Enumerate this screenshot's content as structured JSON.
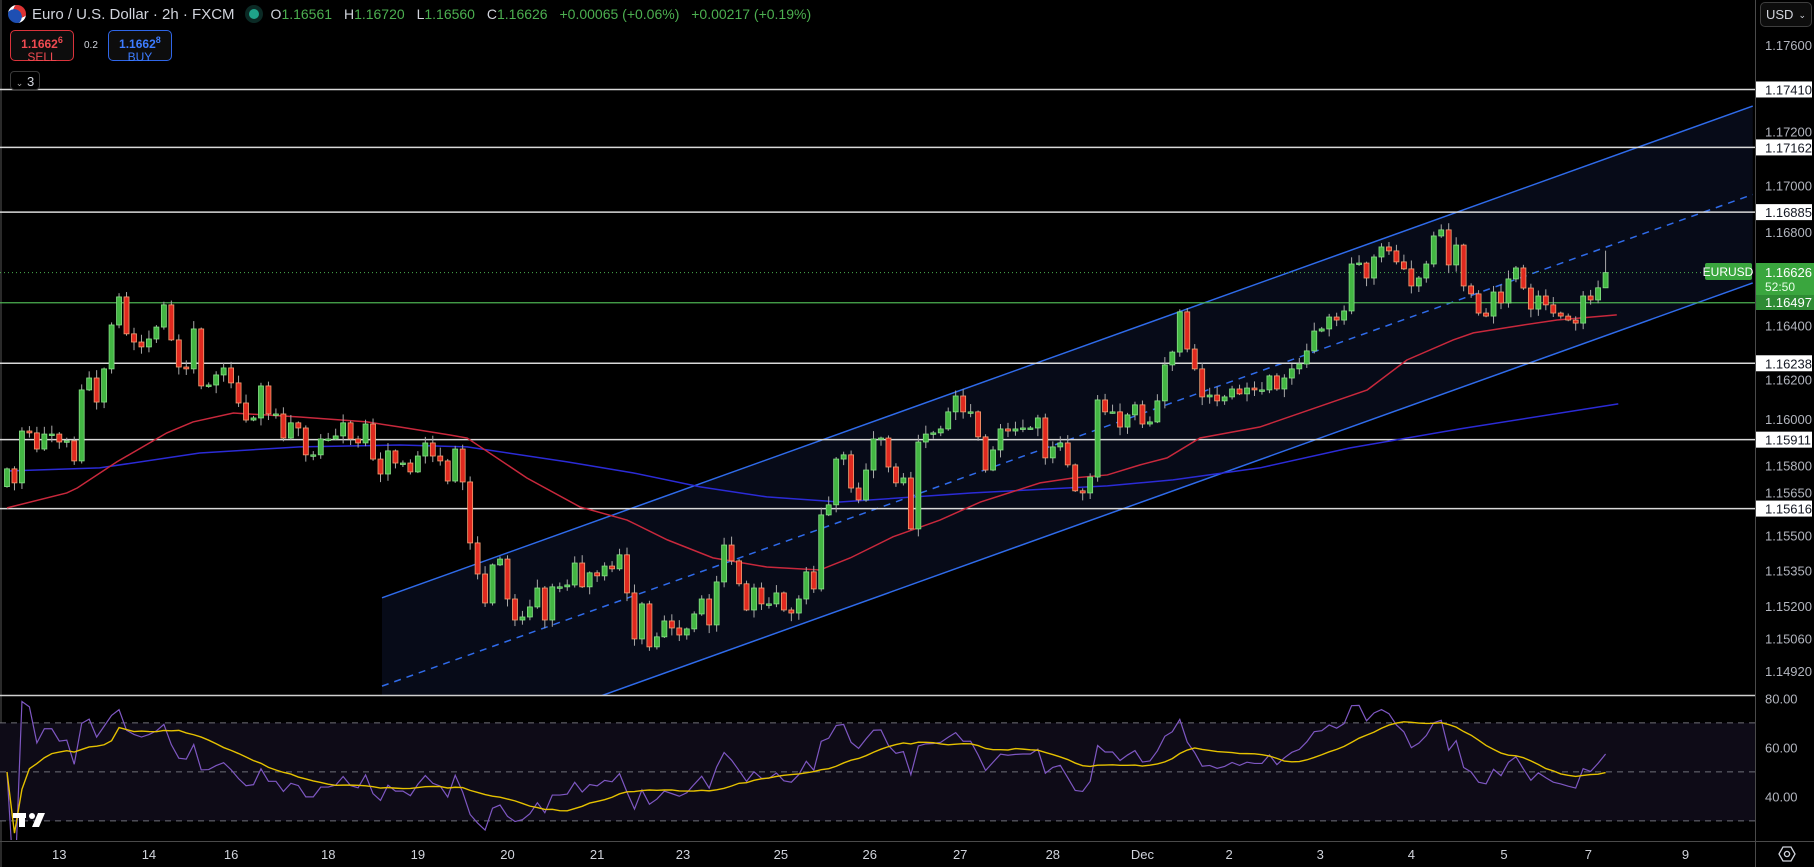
{
  "header": {
    "symbol_icon": "eur-usd-flag-icon",
    "title": "Euro / U.S. Dollar · 2h · FXCM",
    "market_status_color": "#1fa38a",
    "ohlc": {
      "o_label": "O",
      "o": "1.16561",
      "h_label": "H",
      "h": "1.16720",
      "l_label": "L",
      "l": "1.16560",
      "c_label": "C",
      "c": "1.16626",
      "change": "+0.00065 (+0.06%)",
      "change_ext": "+0.00217 (+0.19%)"
    }
  },
  "trade": {
    "sell_price": "1.1662",
    "sell_price_sup": "6",
    "sell_label": "SELL",
    "spread": "0.2",
    "buy_price": "1.1662",
    "buy_price_sup": "8",
    "buy_label": "BUY"
  },
  "indicators_toggle": {
    "icon": "chevron-down-icon",
    "count": "3"
  },
  "currency_select": {
    "value": "USD",
    "icon": "chevron-down-icon"
  },
  "price_axis": {
    "ticks": [
      "1.17600",
      "1.17200",
      "1.17000",
      "1.16800",
      "1.16400",
      "1.16200",
      "1.16000",
      "1.15800",
      "1.15650",
      "1.15500",
      "1.15350",
      "1.15200",
      "1.15060",
      "1.14920"
    ],
    "levels": [
      "1.17410",
      "1.17162",
      "1.16885",
      "1.16238",
      "1.15911",
      "1.15616"
    ],
    "current": {
      "symbol": "EURUSD",
      "price": "1.16626",
      "countdown": "52:50"
    },
    "support": "1.16497"
  },
  "rsi_axis": {
    "ticks": [
      "80.00",
      "60.00",
      "40.00"
    ]
  },
  "time_axis": {
    "ticks": [
      {
        "label": "13",
        "index": 7
      },
      {
        "label": "14",
        "index": 19
      },
      {
        "label": "16",
        "index": 30
      },
      {
        "label": "18",
        "index": 43
      },
      {
        "label": "19",
        "index": 55
      },
      {
        "label": "20",
        "index": 67
      },
      {
        "label": "21",
        "index": 79
      },
      {
        "label": "23",
        "index": 90.5
      },
      {
        "label": "25",
        "index": 103.6
      },
      {
        "label": "26",
        "index": 115.5
      },
      {
        "label": "27",
        "index": 127.6
      },
      {
        "label": "28",
        "index": 140
      },
      {
        "label": "Dec",
        "index": 152
      },
      {
        "label": "2",
        "index": 163.6
      },
      {
        "label": "3",
        "index": 175.8
      },
      {
        "label": "4",
        "index": 188
      },
      {
        "label": "5",
        "index": 200.4
      },
      {
        "label": "7",
        "index": 211.7
      },
      {
        "label": "9",
        "index": 224.7
      }
    ]
  },
  "footer": {
    "logo": "tradingview-logo-icon",
    "settings_icon": "settings-icon"
  },
  "colors": {
    "up": "#43b643",
    "down": "#e0291f",
    "ma_fast": "#c8283c",
    "ma_slow": "#2b2bd6",
    "channel": "#2f6bea",
    "level": "#d9d9d9",
    "support": "#4caf50",
    "rsi": "#7e57c2",
    "rsi_ma": "#e5c100"
  },
  "chart_data": {
    "type": "candlestick",
    "ylim": [
      1.14818,
      1.17793
    ],
    "first_open": 1.1571,
    "closes": [
      1.15786,
      1.15726,
      1.15948,
      1.1594,
      1.15871,
      1.15935,
      1.15935,
      1.15901,
      1.15906,
      1.1582,
      1.16124,
      1.16175,
      1.16072,
      1.16214,
      1.16402,
      1.16522,
      1.16364,
      1.16329,
      1.16308,
      1.16342,
      1.16393,
      1.16488,
      1.16338,
      1.16222,
      1.16214,
      1.16385,
      1.16141,
      1.16145,
      1.16188,
      1.16218,
      1.16154,
      1.16068,
      1.15995,
      1.16004,
      1.16141,
      1.16021,
      1.16021,
      1.15918,
      1.15983,
      1.15961,
      1.15846,
      1.15846,
      1.15914,
      1.15914,
      1.15927,
      1.15983,
      1.15914,
      1.15897,
      1.15978,
      1.15828,
      1.15764,
      1.15863,
      1.15811,
      1.15811,
      1.15773,
      1.15841,
      1.15897,
      1.15841,
      1.1582,
      1.15734,
      1.15871,
      1.1573,
      1.15469,
      1.15336,
      1.15212,
      1.15375,
      1.154,
      1.15229,
      1.15139,
      1.15152,
      1.15195,
      1.15276,
      1.15139,
      1.15281,
      1.15281,
      1.15289,
      1.15383,
      1.15281,
      1.15341,
      1.15328,
      1.1537,
      1.15358,
      1.15418,
      1.15255,
      1.15058,
      1.15208,
      1.15024,
      1.15067,
      1.15135,
      1.15105,
      1.15075,
      1.15101,
      1.15165,
      1.15229,
      1.15118,
      1.15302,
      1.1546,
      1.15392,
      1.15294,
      1.15182,
      1.15276,
      1.15208,
      1.15208,
      1.15255,
      1.15182,
      1.15169,
      1.15229,
      1.15345,
      1.15272,
      1.15589,
      1.15632,
      1.15828,
      1.15846,
      1.15704,
      1.15653,
      1.15781,
      1.15914,
      1.15918,
      1.15794,
      1.15726,
      1.15747,
      1.15529,
      1.15901,
      1.15935,
      1.1594,
      1.15957,
      1.1603,
      1.16098,
      1.1603,
      1.1603,
      1.15923,
      1.15781,
      1.15867,
      1.15957,
      1.15948,
      1.15957,
      1.15961,
      1.15961,
      1.16004,
      1.15833,
      1.1588,
      1.15897,
      1.15803,
      1.15692,
      1.15683,
      1.15751,
      1.16081,
      1.1603,
      1.1603,
      1.15965,
      1.16017,
      1.1606,
      1.15978,
      1.15987,
      1.16077,
      1.16231,
      1.16286,
      1.16458,
      1.16299,
      1.16214,
      1.16094,
      1.16102,
      1.16077,
      1.16094,
      1.16128,
      1.16107,
      1.16132,
      1.16124,
      1.16124,
      1.16184,
      1.16128,
      1.16175,
      1.16214,
      1.16235,
      1.16291,
      1.16376,
      1.16385,
      1.16436,
      1.16423,
      1.16462,
      1.16663,
      1.16667,
      1.16603,
      1.16693,
      1.16736,
      1.16719,
      1.16672,
      1.16642,
      1.16569,
      1.16603,
      1.16663,
      1.16783,
      1.16809,
      1.16659,
      1.16744,
      1.16569,
      1.16535,
      1.16453,
      1.1644,
      1.16543,
      1.16496,
      1.16599,
      1.16646,
      1.1656,
      1.1647,
      1.16526,
      1.16488,
      1.16453,
      1.1644,
      1.16423,
      1.1641,
      1.16526,
      1.16509,
      1.16561,
      1.16626
    ],
    "last_candle": {
      "o": 1.16561,
      "h": 1.1672,
      "l": 1.1656,
      "c": 1.16626
    },
    "ma_fast": [
      [
        0,
        1.15619
      ],
      [
        8,
        1.15683
      ],
      [
        9.4,
        1.15704
      ],
      [
        14.7,
        1.15816
      ],
      [
        21.4,
        1.1594
      ],
      [
        24.9,
        1.15987
      ],
      [
        30.3,
        1.16025
      ],
      [
        39.2,
        1.16008
      ],
      [
        48.2,
        1.15987
      ],
      [
        52.6,
        1.15965
      ],
      [
        59.3,
        1.15931
      ],
      [
        61.6,
        1.15918
      ],
      [
        69.6,
        1.15747
      ],
      [
        76.7,
        1.15623
      ],
      [
        83,
        1.15567
      ],
      [
        88.4,
        1.15482
      ],
      [
        94.5,
        1.15405
      ],
      [
        101.7,
        1.15366
      ],
      [
        108.8,
        1.15353
      ],
      [
        112.9,
        1.15405
      ],
      [
        118.6,
        1.15495
      ],
      [
        124.9,
        1.15567
      ],
      [
        130.3,
        1.15644
      ],
      [
        138.3,
        1.15726
      ],
      [
        142.7,
        1.15747
      ],
      [
        147.3,
        1.1576
      ],
      [
        151.7,
        1.15803
      ],
      [
        155.3,
        1.15833
      ],
      [
        159.7,
        1.15918
      ],
      [
        167.7,
        1.15965
      ],
      [
        182.1,
        1.16124
      ],
      [
        187.4,
        1.16252
      ],
      [
        193.6,
        1.16338
      ],
      [
        196.3,
        1.16368
      ],
      [
        203,
        1.16402
      ],
      [
        207.5,
        1.16423
      ],
      [
        215.5,
        1.16445
      ]
    ],
    "ma_slow": [
      [
        0,
        1.15777
      ],
      [
        12.4,
        1.1579
      ],
      [
        25.8,
        1.15854
      ],
      [
        39.2,
        1.1588
      ],
      [
        52.6,
        1.15888
      ],
      [
        61.6,
        1.1588
      ],
      [
        75,
        1.15816
      ],
      [
        83.8,
        1.15769
      ],
      [
        92.8,
        1.15709
      ],
      [
        101.7,
        1.15666
      ],
      [
        111.5,
        1.15644
      ],
      [
        129.3,
        1.15683
      ],
      [
        147.3,
        1.15713
      ],
      [
        156.1,
        1.15739
      ],
      [
        167.7,
        1.1579
      ],
      [
        179.8,
        1.15876
      ],
      [
        194.5,
        1.15957
      ],
      [
        215.7,
        1.16064
      ]
    ],
    "channel": {
      "upper": [
        [
          50.2,
          1.15234
        ],
        [
          233.7,
          1.17339
        ]
      ],
      "lower": [
        [
          50.2,
          1.14478
        ],
        [
          233.7,
          1.16582
        ]
      ]
    },
    "horizontal_levels": [
      1.1741,
      1.17162,
      1.16885,
      1.16238,
      1.15911,
      1.15616
    ],
    "support_level": 1.16497,
    "current_price": 1.16626,
    "rsi": {
      "period": 14,
      "ma_period": 14,
      "levels": [
        70,
        50,
        30
      ],
      "ylim": [
        21.8,
        81.4
      ]
    }
  }
}
